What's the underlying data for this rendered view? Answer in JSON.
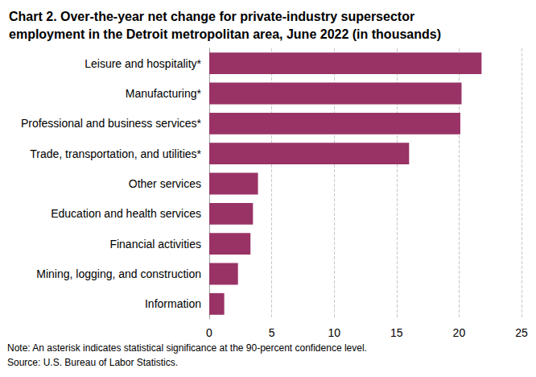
{
  "chart_data": {
    "type": "bar",
    "title": "Chart 2. Over-the-year net change for private-industry supersector employment in the Detroit metropolitan area, June 2022 (in thousands)",
    "categories": [
      "Leisure and hospitality*",
      "Manufacturing*",
      "Professional and business services*",
      "Trade, transportation, and utilities*",
      "Other services",
      "Education and health services",
      "Financial activities",
      "Mining, logging, and construction",
      "Information"
    ],
    "values": [
      21.8,
      20.2,
      20.1,
      16.0,
      3.9,
      3.5,
      3.3,
      2.3,
      1.2
    ],
    "color": "#993366",
    "orientation": "horizontal",
    "xlim": [
      0,
      25
    ],
    "xticks": [
      0,
      5,
      10,
      15,
      20,
      25
    ],
    "grid": true,
    "note": "Note: An asterisk indicates statistical significance at the 90-percent confidence level.",
    "source": "Source: U.S. Bureau of Labor Statistics."
  }
}
